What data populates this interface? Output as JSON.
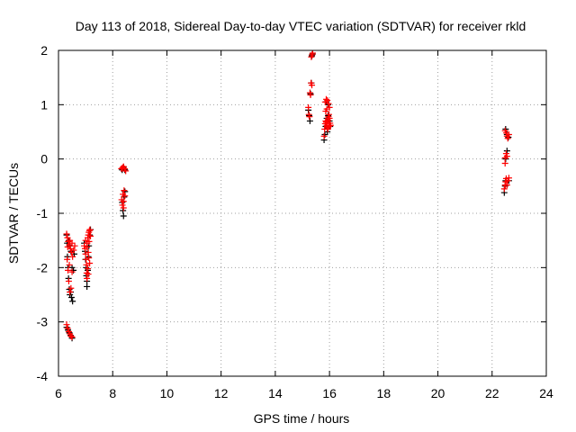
{
  "chart_data": {
    "type": "scatter",
    "title": "Day 113 of 2018, Sidereal Day-to-day VTEC variation (SDTVAR) for receiver rkld",
    "xlabel": "GPS time / hours",
    "ylabel": "SDTVAR / TECUs",
    "xlim": [
      6,
      24
    ],
    "ylim": [
      -4,
      2
    ],
    "xticks": [
      "6",
      "8",
      "10",
      "12",
      "14",
      "16",
      "18",
      "20",
      "22",
      "24"
    ],
    "yticks": [
      "-4",
      "-3",
      "-2",
      "-1",
      "0",
      "1",
      "2"
    ],
    "grid": true,
    "marker": "+",
    "colors": {
      "series_a": "#000000",
      "series_b": "#ff0000"
    },
    "series": [
      {
        "name": "series_a",
        "color": "#000000",
        "points": [
          [
            6.3,
            -1.4
          ],
          [
            6.32,
            -1.55
          ],
          [
            6.33,
            -1.8
          ],
          [
            6.35,
            -2.0
          ],
          [
            6.37,
            -2.2
          ],
          [
            6.4,
            -2.4
          ],
          [
            6.42,
            -2.5
          ],
          [
            6.45,
            -2.45
          ],
          [
            6.48,
            -2.55
          ],
          [
            6.52,
            -2.62
          ],
          [
            6.38,
            -1.5
          ],
          [
            6.42,
            -1.6
          ],
          [
            6.46,
            -1.7
          ],
          [
            6.5,
            -2.0
          ],
          [
            6.55,
            -2.05
          ],
          [
            6.58,
            -1.75
          ],
          [
            6.3,
            -3.1
          ],
          [
            6.35,
            -3.15
          ],
          [
            6.4,
            -3.2
          ],
          [
            6.45,
            -3.25
          ],
          [
            6.5,
            -3.3
          ],
          [
            6.95,
            -1.55
          ],
          [
            6.98,
            -1.7
          ],
          [
            7.0,
            -1.85
          ],
          [
            7.02,
            -2.0
          ],
          [
            7.03,
            -2.15
          ],
          [
            7.05,
            -2.25
          ],
          [
            7.05,
            -2.35
          ],
          [
            7.08,
            -2.05
          ],
          [
            7.1,
            -1.8
          ],
          [
            7.12,
            -1.6
          ],
          [
            7.15,
            -1.4
          ],
          [
            7.18,
            -1.3
          ],
          [
            8.35,
            -0.2
          ],
          [
            8.4,
            -0.15
          ],
          [
            8.45,
            -0.2
          ],
          [
            8.35,
            -0.8
          ],
          [
            8.38,
            -0.95
          ],
          [
            8.4,
            -1.05
          ],
          [
            8.42,
            -0.7
          ],
          [
            8.45,
            -0.6
          ],
          [
            15.22,
            0.9
          ],
          [
            15.25,
            0.8
          ],
          [
            15.28,
            0.7
          ],
          [
            15.3,
            1.2
          ],
          [
            15.33,
            1.4
          ],
          [
            15.35,
            1.9
          ],
          [
            15.37,
            1.93
          ],
          [
            15.8,
            0.35
          ],
          [
            15.83,
            0.45
          ],
          [
            15.86,
            0.6
          ],
          [
            15.9,
            0.75
          ],
          [
            15.95,
            0.8
          ],
          [
            16.0,
            0.7
          ],
          [
            16.02,
            0.6
          ],
          [
            15.92,
            0.5
          ],
          [
            15.88,
            1.05
          ],
          [
            15.95,
            1.0
          ],
          [
            22.45,
            -0.62
          ],
          [
            22.48,
            -0.5
          ],
          [
            22.5,
            -0.4
          ],
          [
            22.5,
            0.0
          ],
          [
            22.55,
            0.15
          ],
          [
            22.5,
            0.55
          ],
          [
            22.55,
            0.45
          ],
          [
            22.6,
            0.4
          ],
          [
            22.62,
            -0.4
          ]
        ]
      },
      {
        "name": "series_b",
        "color": "#ff0000",
        "points": [
          [
            6.3,
            -1.38
          ],
          [
            6.33,
            -1.45
          ],
          [
            6.36,
            -1.52
          ],
          [
            6.4,
            -1.58
          ],
          [
            6.44,
            -1.65
          ],
          [
            6.48,
            -1.72
          ],
          [
            6.52,
            -1.8
          ],
          [
            6.56,
            -1.68
          ],
          [
            6.6,
            -1.6
          ],
          [
            6.34,
            -1.62
          ],
          [
            6.42,
            -1.5
          ],
          [
            6.5,
            -1.55
          ],
          [
            6.32,
            -1.85
          ],
          [
            6.35,
            -2.05
          ],
          [
            6.38,
            -2.25
          ],
          [
            6.42,
            -2.45
          ],
          [
            6.46,
            -2.38
          ],
          [
            6.5,
            -2.08
          ],
          [
            6.4,
            -1.95
          ],
          [
            6.3,
            -3.05
          ],
          [
            6.34,
            -3.12
          ],
          [
            6.38,
            -3.18
          ],
          [
            6.42,
            -3.22
          ],
          [
            6.46,
            -3.26
          ],
          [
            6.5,
            -3.28
          ],
          [
            6.95,
            -1.6
          ],
          [
            6.98,
            -1.65
          ],
          [
            7.0,
            -1.75
          ],
          [
            7.02,
            -1.85
          ],
          [
            7.03,
            -1.95
          ],
          [
            7.04,
            -2.1
          ],
          [
            7.05,
            -2.2
          ],
          [
            7.06,
            -1.55
          ],
          [
            7.08,
            -1.45
          ],
          [
            7.1,
            -1.4
          ],
          [
            7.12,
            -1.35
          ],
          [
            7.14,
            -1.32
          ],
          [
            7.16,
            -1.3
          ],
          [
            7.0,
            -1.5
          ],
          [
            7.05,
            -1.62
          ],
          [
            7.1,
            -1.72
          ],
          [
            7.12,
            -1.82
          ],
          [
            7.15,
            -1.92
          ],
          [
            7.08,
            -2.02
          ],
          [
            7.1,
            -2.12
          ],
          [
            7.13,
            -1.52
          ],
          [
            7.18,
            -1.42
          ],
          [
            8.32,
            -0.18
          ],
          [
            8.36,
            -0.16
          ],
          [
            8.4,
            -0.14
          ],
          [
            8.44,
            -0.18
          ],
          [
            8.48,
            -0.22
          ],
          [
            8.33,
            -0.75
          ],
          [
            8.36,
            -0.85
          ],
          [
            8.38,
            -0.65
          ],
          [
            8.4,
            -0.78
          ],
          [
            8.42,
            -0.58
          ],
          [
            8.45,
            -0.68
          ],
          [
            8.4,
            -0.9
          ],
          [
            15.22,
            0.95
          ],
          [
            15.24,
            0.82
          ],
          [
            15.26,
            0.78
          ],
          [
            15.28,
            1.22
          ],
          [
            15.3,
            1.18
          ],
          [
            15.32,
            1.4
          ],
          [
            15.35,
            1.36
          ],
          [
            15.33,
            1.88
          ],
          [
            15.36,
            1.92
          ],
          [
            15.38,
            1.95
          ],
          [
            15.8,
            0.42
          ],
          [
            15.82,
            0.55
          ],
          [
            15.84,
            0.65
          ],
          [
            15.86,
            0.7
          ],
          [
            15.88,
            0.68
          ],
          [
            15.9,
            0.62
          ],
          [
            15.92,
            0.58
          ],
          [
            15.94,
            0.72
          ],
          [
            15.96,
            0.78
          ],
          [
            15.98,
            0.82
          ],
          [
            16.0,
            0.75
          ],
          [
            16.02,
            0.66
          ],
          [
            16.04,
            0.62
          ],
          [
            15.84,
            1.05
          ],
          [
            15.88,
            1.1
          ],
          [
            15.92,
            1.08
          ],
          [
            15.96,
            1.02
          ],
          [
            16.0,
            0.95
          ],
          [
            15.86,
            0.88
          ],
          [
            15.9,
            0.92
          ],
          [
            15.94,
            0.55
          ],
          [
            15.98,
            0.6
          ],
          [
            22.45,
            -0.55
          ],
          [
            22.48,
            -0.48
          ],
          [
            22.5,
            -0.42
          ],
          [
            22.52,
            -0.36
          ],
          [
            22.55,
            -0.48
          ],
          [
            22.58,
            -0.4
          ],
          [
            22.62,
            -0.35
          ],
          [
            22.48,
            0.02
          ],
          [
            22.52,
            0.1
          ],
          [
            22.55,
            0.05
          ],
          [
            22.48,
            -0.08
          ],
          [
            22.48,
            0.52
          ],
          [
            22.52,
            0.48
          ],
          [
            22.55,
            0.42
          ],
          [
            22.58,
            0.38
          ],
          [
            22.62,
            0.45
          ]
        ]
      }
    ]
  }
}
